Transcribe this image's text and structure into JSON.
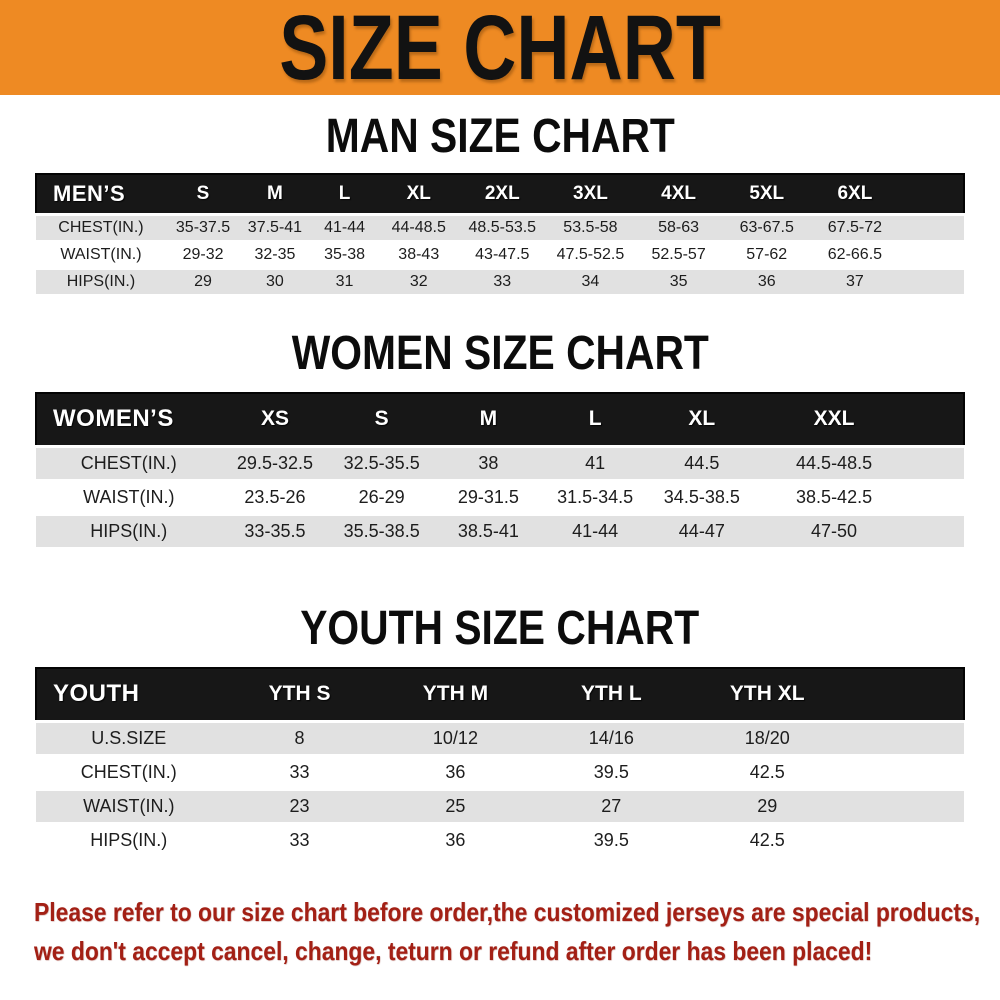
{
  "banner": {
    "title": "SIZE CHART",
    "bg_color": "#ee8a23",
    "text_color": "#121212"
  },
  "sections": [
    {
      "title": "MAN SIZE CHART",
      "header_label": "MEN’S",
      "columns": [
        "S",
        "M",
        "L",
        "XL",
        "2XL",
        "3XL",
        "4XL",
        "5XL",
        "6XL"
      ],
      "rows": [
        {
          "label": "CHEST(IN.)",
          "values": [
            "35-37.5",
            "37.5-41",
            "41-44",
            "44-48.5",
            "48.5-53.5",
            "53.5-58",
            "58-63",
            "63-67.5",
            "67.5-72"
          ]
        },
        {
          "label": "WAIST(IN.)",
          "values": [
            "29-32",
            "32-35",
            "35-38",
            "38-43",
            "43-47.5",
            "47.5-52.5",
            "52.5-57",
            "57-62",
            "62-66.5"
          ]
        },
        {
          "label": "HIPS(IN.)",
          "values": [
            "29",
            "30",
            "31",
            "32",
            "33",
            "34",
            "35",
            "36",
            "37"
          ]
        }
      ]
    },
    {
      "title": "WOMEN SIZE CHART",
      "header_label": "WOMEN’S",
      "columns": [
        "XS",
        "S",
        "M",
        "L",
        "XL",
        "XXL"
      ],
      "rows": [
        {
          "label": "CHEST(IN.)",
          "values": [
            "29.5-32.5",
            "32.5-35.5",
            "38",
            "41",
            "44.5",
            "44.5-48.5"
          ]
        },
        {
          "label": "WAIST(IN.)",
          "values": [
            "23.5-26",
            "26-29",
            "29-31.5",
            "31.5-34.5",
            "34.5-38.5",
            "38.5-42.5"
          ]
        },
        {
          "label": "HIPS(IN.)",
          "values": [
            "33-35.5",
            "35.5-38.5",
            "38.5-41",
            "41-44",
            "44-47",
            "47-50"
          ]
        }
      ]
    },
    {
      "title": "YOUTH SIZE CHART",
      "header_label": "YOUTH",
      "columns": [
        "YTH S",
        "YTH M",
        "YTH L",
        "YTH XL"
      ],
      "rows": [
        {
          "label": "U.S.SIZE",
          "values": [
            "8",
            "10/12",
            "14/16",
            "18/20"
          ]
        },
        {
          "label": "CHEST(IN.)",
          "values": [
            "33",
            "36",
            "39.5",
            "42.5"
          ]
        },
        {
          "label": "WAIST(IN.)",
          "values": [
            "23",
            "25",
            "27",
            "29"
          ]
        },
        {
          "label": "HIPS(IN.)",
          "values": [
            "33",
            "36",
            "39.5",
            "42.5"
          ]
        }
      ]
    }
  ],
  "table_style": {
    "header_bar_color": "#171717",
    "stripe_color": "#e1e1e1"
  },
  "footer": {
    "line1": "Please refer to our size chart before order,the customized jerseys are special products,",
    "line2": "we don't accept cancel, change, teturn or refund after order has been placed!",
    "color": "#a32015"
  }
}
